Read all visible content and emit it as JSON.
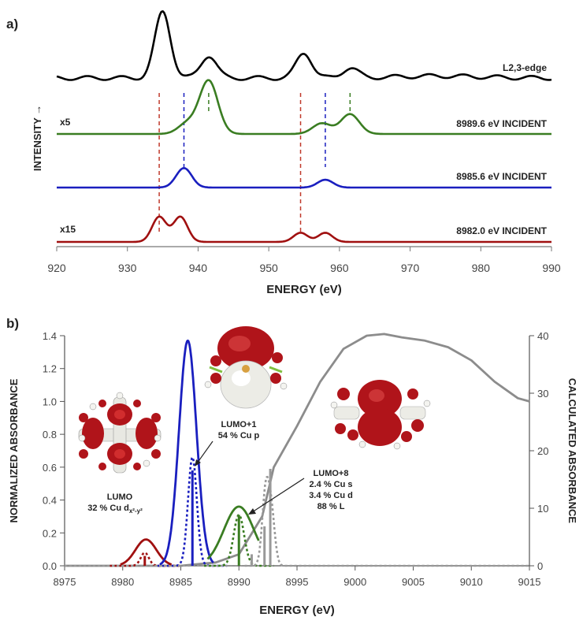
{
  "panels": {
    "a_label": "a)",
    "b_label": "b)"
  },
  "chart_data": [
    {
      "type": "line",
      "panel": "a",
      "xlabel": "ENERGY (eV)",
      "ylabel": "INTENSITY →",
      "xlim": [
        920,
        990
      ],
      "x_ticks": [
        "920",
        "930",
        "940",
        "950",
        "960",
        "970",
        "980",
        "990"
      ],
      "x_tick_values": [
        920,
        930,
        940,
        950,
        960,
        970,
        980,
        990
      ],
      "grid": false,
      "series": [
        {
          "name": "L2,3-edge",
          "color": "#000000",
          "peaks": [
            [
              935.0,
              1.0
            ],
            [
              941.5,
              0.34
            ],
            [
              955.0,
              0.38
            ],
            [
              961.5,
              0.15
            ]
          ]
        },
        {
          "name": "8989.6 eV INCIDENT",
          "scale_label": "x5",
          "color": "#3a7d22",
          "peaks": [
            [
              938.5,
              0.15
            ],
            [
              941.5,
              0.75
            ],
            [
              957.5,
              0.15
            ],
            [
              961.5,
              0.28
            ]
          ]
        },
        {
          "name": "8985.6 eV INCIDENT",
          "scale_label": "",
          "color": "#1a1fbf",
          "peaks": [
            [
              938.0,
              0.55
            ],
            [
              958.0,
              0.22
            ]
          ]
        },
        {
          "name": "8982.0 eV INCIDENT",
          "scale_label": "x15",
          "color": "#a01010",
          "peaks": [
            [
              934.5,
              0.55
            ],
            [
              937.5,
              0.55
            ],
            [
              954.5,
              0.2
            ],
            [
              958.0,
              0.2
            ]
          ]
        }
      ],
      "dashed_markers": [
        {
          "x": 934.5,
          "color": "#c0392b"
        },
        {
          "x": 938.0,
          "color": "#1a1fbf"
        },
        {
          "x": 941.5,
          "color": "#3a7d22"
        },
        {
          "x": 954.5,
          "color": "#c0392b"
        },
        {
          "x": 958.0,
          "color": "#1a1fbf"
        },
        {
          "x": 961.5,
          "color": "#3a7d22"
        }
      ]
    },
    {
      "type": "line",
      "panel": "b",
      "xlabel": "ENERGY (eV)",
      "ylabel": "NORMALIZED ABSORBANCE",
      "y2label": "CALCULATED ABSORBANCE",
      "xlim": [
        8975,
        9015
      ],
      "ylim": [
        0,
        1.4
      ],
      "y2lim": [
        0,
        40
      ],
      "x_ticks": [
        "8975",
        "8980",
        "8985",
        "8990",
        "8995",
        "9000",
        "9005",
        "9010",
        "9015"
      ],
      "x_tick_values": [
        8975,
        8980,
        8985,
        8990,
        8995,
        9000,
        9005,
        9010,
        9015
      ],
      "y_ticks": [
        "0.0",
        "0.2",
        "0.4",
        "0.6",
        "0.8",
        "1.0",
        "1.2",
        "1.4"
      ],
      "y_tick_values": [
        0,
        0.2,
        0.4,
        0.6,
        0.8,
        1.0,
        1.2,
        1.4
      ],
      "y2_ticks": [
        "0",
        "10",
        "20",
        "30",
        "40"
      ],
      "y2_tick_values": [
        0,
        10,
        20,
        30,
        40
      ],
      "gray_experimental": {
        "x": [
          8975,
          8985,
          8988,
          8990,
          8992,
          8993,
          8995,
          8997,
          8999,
          9001,
          9002.5,
          9004,
          9006,
          9008,
          9010,
          9012,
          9014,
          9015
        ],
        "y": [
          0.0,
          0.0,
          0.02,
          0.07,
          0.3,
          0.6,
          0.85,
          1.12,
          1.32,
          1.4,
          1.41,
          1.39,
          1.37,
          1.33,
          1.25,
          1.12,
          1.02,
          1.0
        ]
      },
      "colored_solid": [
        {
          "color": "#a01010",
          "center": 8982.0,
          "height": 0.16,
          "width": 0.9,
          "range": [
            8979.8,
            8984.2
          ]
        },
        {
          "color": "#1a1fbf",
          "center": 8985.6,
          "height": 1.37,
          "width": 0.75,
          "range": [
            8983.2,
            8987.8
          ]
        },
        {
          "color": "#3a7d22",
          "center": 8990.0,
          "height": 0.36,
          "width": 1.3,
          "range": [
            8987.3,
            8991.7
          ]
        }
      ],
      "sticks": [
        {
          "x": 8981.9,
          "y": 0.06,
          "color": "#a01010"
        },
        {
          "x": 8986.0,
          "y": 0.58,
          "color": "#1a1fbf"
        },
        {
          "x": 8990.0,
          "y": 0.31,
          "color": "#3a7d22"
        },
        {
          "x": 8991.1,
          "y": 0.07,
          "color": "#999999"
        },
        {
          "x": 8992.2,
          "y": 0.24,
          "color": "#999999"
        },
        {
          "x": 8992.7,
          "y": 0.59,
          "color": "#999999"
        }
      ],
      "dotted": [
        {
          "color": "#a01010",
          "peaks": [
            [
              8981.9,
              0.08
            ]
          ],
          "width": 0.35
        },
        {
          "color": "#1a1fbf",
          "peaks": [
            [
              8986.0,
              0.66
            ]
          ],
          "width": 0.38
        },
        {
          "color": "#3a7d22",
          "peaks": [
            [
              8990.0,
              0.31
            ]
          ],
          "width": 0.45
        },
        {
          "color": "#999999",
          "peaks": [
            [
              8992.3,
              0.44
            ],
            [
              8992.8,
              0.3
            ]
          ],
          "width": 0.3
        }
      ],
      "annotations": [
        {
          "lines": [
            "LUMO",
            "32 % Cu d"
          ],
          "sub": "x²-y²"
        },
        {
          "lines": [
            "LUMO+1",
            "54 % Cu p"
          ]
        },
        {
          "lines": [
            "LUMO+8",
            "2.4 % Cu s",
            "3.4 % Cu d",
            "88 % L"
          ]
        }
      ]
    }
  ],
  "colors": {
    "red": "#a01010",
    "blue": "#1a1fbf",
    "green": "#3a7d22",
    "gray": "#8c8c8c",
    "orbital_red": "#b0141a",
    "orbital_white": "#ecece6"
  }
}
